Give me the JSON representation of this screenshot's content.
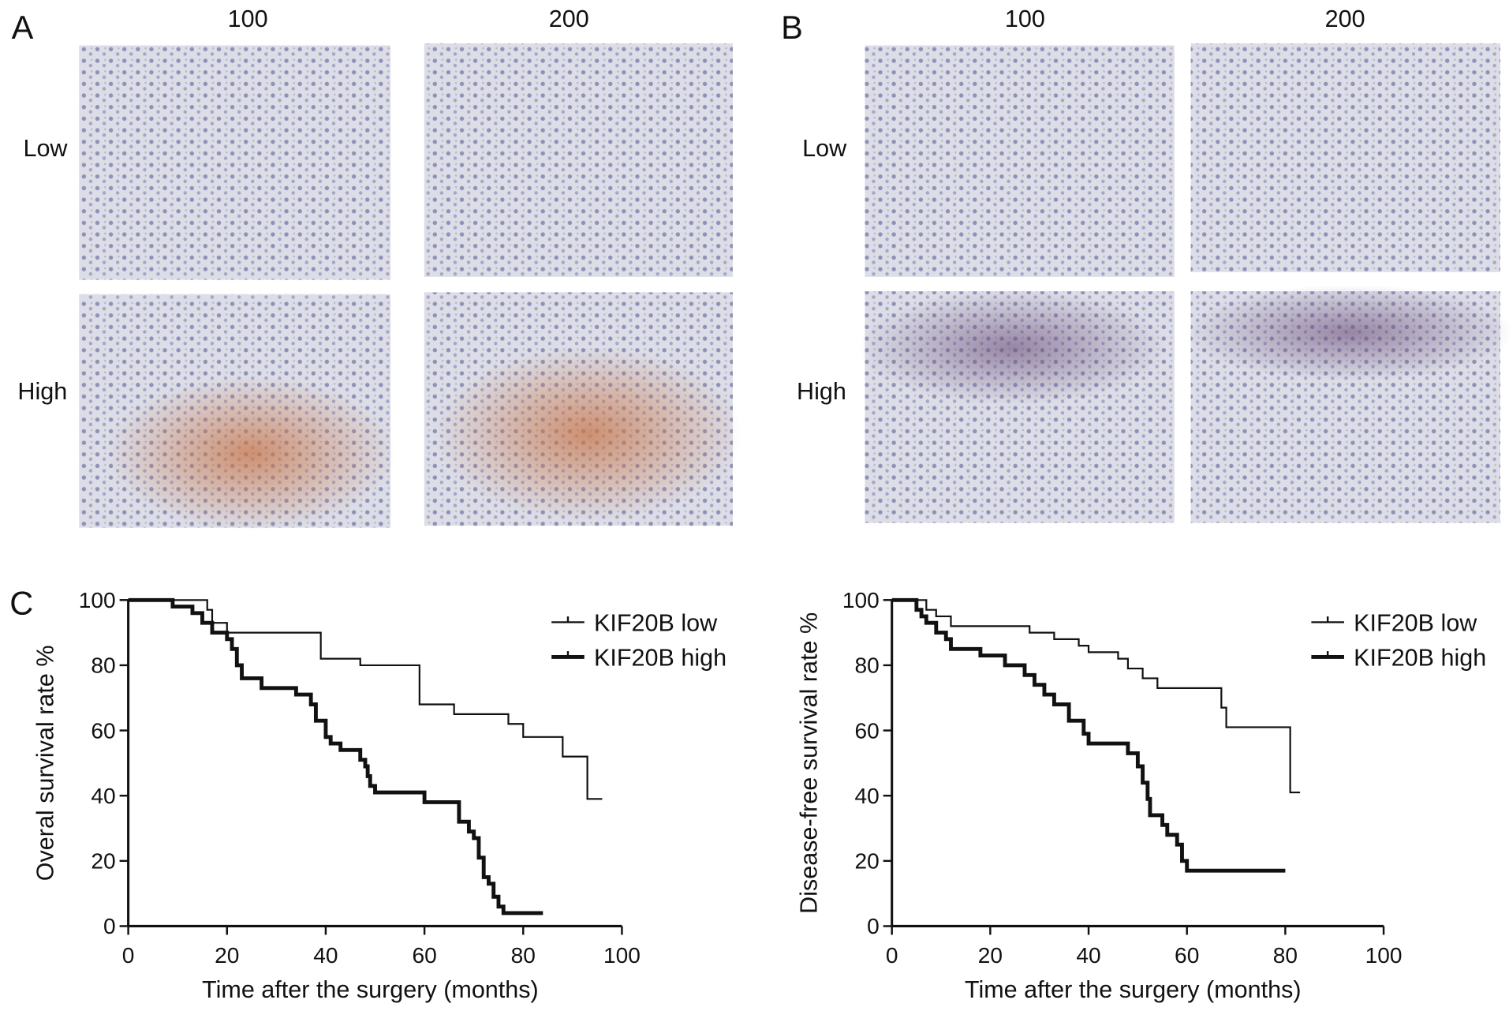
{
  "figure": {
    "panels": [
      {
        "label": "A",
        "columns": [
          "100",
          "200"
        ],
        "rows": [
          "Low",
          "High"
        ]
      },
      {
        "label": "B",
        "columns": [
          "100",
          "200"
        ],
        "rows": [
          "Low",
          "High"
        ]
      },
      {
        "label": "C"
      }
    ]
  },
  "chart_data": [
    {
      "type": "line",
      "step": true,
      "ylabel": "Overal survival rate %",
      "xlabel": "Time after the surgery (months)",
      "xlim": [
        0,
        100
      ],
      "xticks": [
        0,
        20,
        40,
        60,
        80,
        100
      ],
      "ylim": [
        0,
        100
      ],
      "yticks": [
        0,
        20,
        40,
        60,
        80,
        100
      ],
      "series": [
        {
          "name": "KIF20B low",
          "color": "#111111",
          "x": [
            0,
            16,
            17,
            20,
            23,
            39,
            47,
            59,
            66,
            77,
            80,
            88,
            93,
            96
          ],
          "values": [
            100,
            97,
            93,
            90,
            90,
            82,
            80,
            68,
            65,
            62,
            58,
            52,
            39,
            39
          ]
        },
        {
          "name": "KIF20B high",
          "color": "#111111",
          "x": [
            0,
            9,
            13,
            15,
            17,
            20,
            21,
            22,
            23,
            27,
            34,
            37,
            38,
            40,
            41,
            43,
            47,
            48,
            48.5,
            49,
            50,
            60,
            67,
            69,
            70,
            71,
            72,
            73,
            74,
            75,
            76,
            84
          ],
          "values": [
            100,
            98,
            96,
            93,
            90,
            88,
            85,
            80,
            76,
            73,
            71,
            68,
            63,
            58,
            56,
            54,
            51,
            49,
            46,
            43,
            41,
            38,
            32,
            29,
            27,
            21,
            15,
            13,
            9,
            6,
            4,
            4
          ]
        }
      ]
    },
    {
      "type": "line",
      "step": true,
      "ylabel": "Disease-free survival rate %",
      "xlabel": "Time after the surgery (months)",
      "xlim": [
        0,
        100
      ],
      "xticks": [
        0,
        20,
        40,
        60,
        80,
        100
      ],
      "ylim": [
        0,
        100
      ],
      "yticks": [
        0,
        20,
        40,
        60,
        80,
        100
      ],
      "series": [
        {
          "name": "KIF20B low",
          "color": "#111111",
          "x": [
            0,
            7,
            9,
            12,
            28,
            33,
            38,
            40,
            46,
            48,
            51,
            54,
            67,
            68,
            81,
            83
          ],
          "values": [
            100,
            97,
            95,
            92,
            90,
            88,
            86,
            84,
            82,
            79,
            76,
            73,
            67,
            61,
            41,
            41
          ]
        },
        {
          "name": "KIF20B high",
          "color": "#111111",
          "x": [
            0,
            5,
            6,
            7,
            9,
            11,
            12,
            18,
            23,
            27,
            29,
            31,
            33,
            36,
            39,
            40,
            48,
            50,
            51,
            52,
            52.5,
            55,
            56,
            58,
            59,
            60,
            80
          ],
          "values": [
            100,
            97,
            95,
            93,
            90,
            88,
            85,
            83,
            80,
            77,
            74,
            71,
            68,
            63,
            59,
            56,
            53,
            49,
            44,
            39,
            34,
            31,
            28,
            25,
            20,
            17,
            17
          ]
        }
      ]
    }
  ]
}
